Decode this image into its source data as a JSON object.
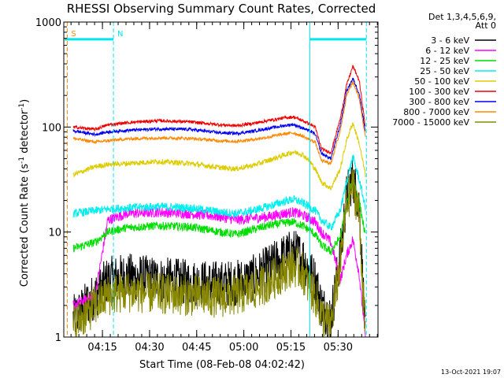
{
  "chart_data": {
    "type": "line",
    "title": "RHESSI Observing Summary Count Rates, Corrected",
    "xlabel": "Start Time (08-Feb-08 04:02:42)",
    "ylabel_main": "Corrected Count Rate (s",
    "ylabel_sup1": "-1",
    "ylabel_mid": " detector",
    "ylabel_sup2": "-1",
    "ylabel_end": ")",
    "y_scale": "log",
    "ylim": [
      1,
      1000
    ],
    "xlim_minutes": [
      0,
      100
    ],
    "x_unit": "minutes after 04:02:42",
    "x_ticks": [
      {
        "label": "04:15",
        "value": 12.3
      },
      {
        "label": "04:30",
        "value": 27.3
      },
      {
        "label": "04:45",
        "value": 42.3
      },
      {
        "label": "05:00",
        "value": 57.3
      },
      {
        "label": "05:15",
        "value": 72.3
      },
      {
        "label": "05:30",
        "value": 87.3
      }
    ],
    "y_ticks": [
      {
        "label": "1",
        "value": 1
      },
      {
        "label": "10",
        "value": 10
      },
      {
        "label": "100",
        "value": 100
      },
      {
        "label": "1000",
        "value": 1000
      }
    ],
    "legend_header": [
      "Det 1,3,4,5,6,9,",
      "Att 0"
    ],
    "legend_placement": "right",
    "timestamp": "13-Oct-2021 19:07",
    "annotations": [
      {
        "label": "S",
        "x_start": 0.3,
        "x_end": 1.1,
        "y": 685,
        "color": "#ff8800"
      },
      {
        "label": "N",
        "x_start": 0.3,
        "x_end": 15.8,
        "y": 685,
        "color": "#00e5ee"
      },
      {
        "label": "",
        "x_start": 78.3,
        "x_end": 96.3,
        "y": 685,
        "color": "#00e5ee"
      }
    ],
    "vertical_lines": [
      {
        "x": 1.1,
        "color": "#ff8800",
        "style": "dashed"
      },
      {
        "x": 15.8,
        "color": "#00e5ee",
        "style": "dashed"
      },
      {
        "x": 78.3,
        "color": "#00e5ee",
        "style": "solid"
      },
      {
        "x": 96.3,
        "color": "#00e5ee",
        "style": "dashed"
      }
    ],
    "series": [
      {
        "name": "3 - 6 keV",
        "color": "#000000",
        "noise": 0.45,
        "floor": 1,
        "x": [
          3,
          10,
          14,
          20,
          30,
          40,
          50,
          55,
          60,
          65,
          70,
          73,
          76,
          78,
          80,
          82,
          85,
          88,
          90,
          92,
          94,
          96
        ],
        "y": [
          1.5,
          2.5,
          3.5,
          3.8,
          3.5,
          3.3,
          3.2,
          3.3,
          3.6,
          4.5,
          5.8,
          6.5,
          5.8,
          4.3,
          3.5,
          2.0,
          1.5,
          6,
          22,
          33,
          18,
          1
        ]
      },
      {
        "name": "6 - 12 keV",
        "color": "#ff00ff",
        "noise": 0.1,
        "floor": 1,
        "x": [
          3,
          10,
          14,
          20,
          30,
          40,
          50,
          55,
          60,
          65,
          70,
          73,
          76,
          78,
          80,
          82,
          85,
          88,
          90,
          92,
          94,
          96
        ],
        "y": [
          2,
          2.5,
          13,
          15,
          15.5,
          15,
          14,
          13,
          13.5,
          14,
          15,
          15.5,
          14.5,
          13.5,
          12.5,
          10,
          8,
          3.5,
          6,
          8.5,
          4,
          1
        ]
      },
      {
        "name": "12 - 25 keV",
        "color": "#00dd00",
        "noise": 0.08,
        "floor": 1,
        "x": [
          3,
          10,
          14,
          20,
          30,
          40,
          50,
          55,
          60,
          65,
          70,
          73,
          76,
          78,
          80,
          82,
          85,
          88,
          90,
          92,
          94,
          96
        ],
        "y": [
          7,
          8,
          10,
          11,
          11.5,
          11.2,
          10,
          9.5,
          10.5,
          11.5,
          12.2,
          12.5,
          11.5,
          10.5,
          9.5,
          7.5,
          6.5,
          9,
          18,
          32,
          20,
          9
        ]
      },
      {
        "name": "25 - 50 keV",
        "color": "#00eeee",
        "noise": 0.08,
        "floor": 1,
        "x": [
          3,
          10,
          14,
          20,
          30,
          40,
          50,
          55,
          60,
          65,
          70,
          73,
          76,
          78,
          80,
          82,
          85,
          88,
          90,
          92,
          94,
          96
        ],
        "y": [
          15,
          16,
          16.5,
          17,
          17.5,
          17,
          15.5,
          15,
          16,
          17.5,
          19.5,
          20.5,
          19,
          17.5,
          16,
          13,
          11,
          16,
          30,
          52,
          32,
          17
        ]
      },
      {
        "name": "50 - 100 keV",
        "color": "#ddcc00",
        "noise": 0.05,
        "floor": 1,
        "x": [
          3,
          10,
          14,
          20,
          30,
          40,
          50,
          55,
          60,
          65,
          70,
          73,
          76,
          78,
          80,
          82,
          85,
          88,
          90,
          92,
          94,
          96
        ],
        "y": [
          35,
          42,
          44,
          45,
          47,
          45,
          41,
          40,
          43,
          48,
          54,
          58,
          55,
          48,
          40,
          30,
          26,
          40,
          75,
          110,
          70,
          35
        ]
      },
      {
        "name": "100 - 300 keV",
        "color": "#ee0000",
        "noise": 0.03,
        "floor": 1,
        "x": [
          3,
          10,
          14,
          20,
          30,
          40,
          50,
          55,
          60,
          65,
          70,
          73,
          76,
          78,
          80,
          82,
          85,
          88,
          90,
          92,
          94,
          96
        ],
        "y": [
          100,
          95,
          105,
          110,
          115,
          112,
          105,
          103,
          108,
          115,
          122,
          125,
          115,
          108,
          100,
          62,
          57,
          120,
          250,
          380,
          280,
          100
        ]
      },
      {
        "name": "300 - 800 keV",
        "color": "#0000ee",
        "noise": 0.03,
        "floor": 1,
        "x": [
          3,
          10,
          14,
          20,
          30,
          40,
          50,
          55,
          60,
          65,
          70,
          73,
          76,
          78,
          80,
          82,
          85,
          88,
          90,
          92,
          94,
          96
        ],
        "y": [
          92,
          85,
          90,
          93,
          96,
          95,
          88,
          87,
          91,
          97,
          103,
          106,
          98,
          92,
          86,
          56,
          50,
          105,
          220,
          290,
          210,
          90
        ]
      },
      {
        "name": "800 - 7000 keV",
        "color": "#ff8800",
        "noise": 0.03,
        "floor": 1,
        "x": [
          3,
          10,
          14,
          20,
          30,
          40,
          50,
          55,
          60,
          65,
          70,
          73,
          76,
          78,
          80,
          82,
          85,
          88,
          90,
          92,
          94,
          96
        ],
        "y": [
          78,
          72,
          74,
          77,
          79,
          78,
          74,
          73,
          76,
          80,
          86,
          88,
          82,
          76,
          72,
          48,
          45,
          92,
          200,
          270,
          190,
          80
        ]
      },
      {
        "name": "7000 - 15000 keV",
        "color": "#888800",
        "noise": 0.4,
        "floor": 1,
        "x": [
          3,
          10,
          14,
          20,
          30,
          40,
          50,
          55,
          60,
          65,
          70,
          73,
          76,
          78,
          80,
          82,
          85,
          88,
          90,
          92,
          94,
          96
        ],
        "y": [
          1.3,
          2.0,
          2.5,
          2.7,
          2.6,
          2.5,
          2.4,
          2.5,
          2.8,
          3.3,
          4.2,
          4.8,
          4.2,
          3.0,
          2.5,
          1.6,
          1.3,
          5,
          18,
          28,
          15,
          1
        ]
      }
    ]
  }
}
